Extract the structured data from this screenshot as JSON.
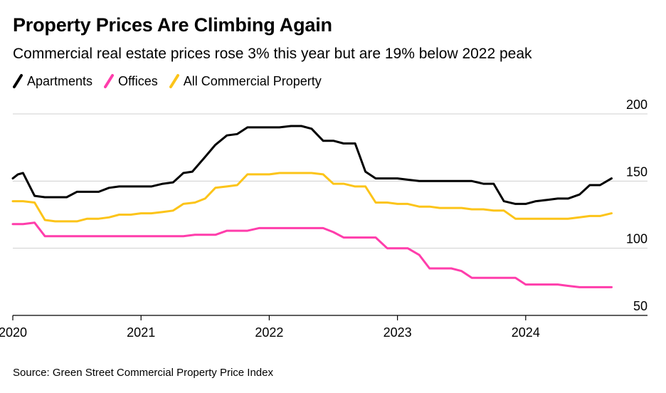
{
  "title": "Property Prices Are Climbing Again",
  "subtitle": "Commercial real estate prices rose 3% this year but are 19% below 2022 peak",
  "source": "Source: Green Street Commercial Property Price Index",
  "colors": {
    "Apartments": "#000000",
    "Offices": "#ff3dab",
    "All Commercial Property": "#fcc419"
  },
  "chart_data": {
    "type": "line",
    "ylim": [
      50,
      200
    ],
    "yticks": [
      200,
      150,
      100,
      50
    ],
    "xlim": [
      2020,
      2024.95
    ],
    "xticks": [
      {
        "label": "2020",
        "value": 2020
      },
      {
        "label": "2021",
        "value": 2021
      },
      {
        "label": "2022",
        "value": 2022
      },
      {
        "label": "2023",
        "value": 2023
      },
      {
        "label": "2024",
        "value": 2024
      }
    ],
    "grid": true,
    "legend": "top-left",
    "series": [
      {
        "name": "Apartments",
        "x": [
          2020.0,
          2020.04,
          2020.08,
          2020.17,
          2020.25,
          2020.33,
          2020.42,
          2020.5,
          2020.58,
          2020.62,
          2020.67,
          2020.75,
          2020.83,
          2020.92,
          2021.0,
          2021.08,
          2021.17,
          2021.25,
          2021.33,
          2021.4,
          2021.5,
          2021.58,
          2021.67,
          2021.75,
          2021.83,
          2021.92,
          2022.0,
          2022.08,
          2022.17,
          2022.25,
          2022.33,
          2022.42,
          2022.5,
          2022.58,
          2022.67,
          2022.75,
          2022.83,
          2022.92,
          2023.0,
          2023.08,
          2023.17,
          2023.25,
          2023.33,
          2023.42,
          2023.5,
          2023.58,
          2023.67,
          2023.75,
          2023.83,
          2023.92,
          2024.0,
          2024.08,
          2024.17,
          2024.25,
          2024.33,
          2024.42,
          2024.5,
          2024.58,
          2024.67
        ],
        "values": [
          152,
          155,
          156,
          139,
          138,
          138,
          138,
          142,
          142,
          142,
          142,
          145,
          146,
          146,
          146,
          146,
          148,
          149,
          156,
          157,
          168,
          177,
          184,
          185,
          190,
          190,
          190,
          190,
          191,
          191,
          189,
          180,
          180,
          178,
          178,
          157,
          152,
          152,
          152,
          151,
          150,
          150,
          150,
          150,
          150,
          150,
          148,
          148,
          135,
          133,
          133,
          135,
          136,
          137,
          137,
          140,
          147,
          147,
          152
        ]
      },
      {
        "name": "All Commercial Property",
        "x": [
          2020.0,
          2020.08,
          2020.17,
          2020.25,
          2020.33,
          2020.42,
          2020.5,
          2020.58,
          2020.67,
          2020.75,
          2020.83,
          2020.92,
          2021.0,
          2021.08,
          2021.17,
          2021.25,
          2021.33,
          2021.42,
          2021.5,
          2021.58,
          2021.67,
          2021.75,
          2021.83,
          2021.92,
          2022.0,
          2022.08,
          2022.17,
          2022.25,
          2022.33,
          2022.42,
          2022.5,
          2022.58,
          2022.67,
          2022.75,
          2022.83,
          2022.92,
          2023.0,
          2023.08,
          2023.17,
          2023.25,
          2023.33,
          2023.42,
          2023.5,
          2023.58,
          2023.67,
          2023.75,
          2023.83,
          2023.92,
          2024.0,
          2024.08,
          2024.17,
          2024.25,
          2024.33,
          2024.42,
          2024.5,
          2024.58,
          2024.67
        ],
        "values": [
          135,
          135,
          134,
          121,
          120,
          120,
          120,
          122,
          122,
          123,
          125,
          125,
          126,
          126,
          127,
          128,
          133,
          134,
          137,
          145,
          146,
          147,
          155,
          155,
          155,
          156,
          156,
          156,
          156,
          155,
          148,
          148,
          146,
          146,
          134,
          134,
          133,
          133,
          131,
          131,
          130,
          130,
          130,
          129,
          129,
          128,
          128,
          122,
          122,
          122,
          122,
          122,
          122,
          123,
          124,
          124,
          126
        ]
      },
      {
        "name": "Offices",
        "x": [
          2020.0,
          2020.08,
          2020.17,
          2020.25,
          2020.33,
          2020.42,
          2020.5,
          2020.58,
          2020.67,
          2020.75,
          2020.83,
          2020.92,
          2021.0,
          2021.08,
          2021.17,
          2021.25,
          2021.33,
          2021.42,
          2021.5,
          2021.58,
          2021.67,
          2021.75,
          2021.83,
          2021.92,
          2022.0,
          2022.08,
          2022.17,
          2022.25,
          2022.33,
          2022.42,
          2022.5,
          2022.58,
          2022.67,
          2022.75,
          2022.83,
          2022.92,
          2023.0,
          2023.08,
          2023.17,
          2023.25,
          2023.33,
          2023.42,
          2023.5,
          2023.58,
          2023.67,
          2023.75,
          2023.83,
          2023.92,
          2024.0,
          2024.08,
          2024.17,
          2024.25,
          2024.33,
          2024.42,
          2024.5,
          2024.58,
          2024.67
        ],
        "values": [
          118,
          118,
          119,
          109,
          109,
          109,
          109,
          109,
          109,
          109,
          109,
          109,
          109,
          109,
          109,
          109,
          109,
          110,
          110,
          110,
          113,
          113,
          113,
          115,
          115,
          115,
          115,
          115,
          115,
          115,
          112,
          108,
          108,
          108,
          108,
          100,
          100,
          100,
          95,
          85,
          85,
          85,
          83,
          78,
          78,
          78,
          78,
          78,
          73,
          73,
          73,
          73,
          72,
          71,
          71,
          71,
          71
        ]
      }
    ]
  }
}
